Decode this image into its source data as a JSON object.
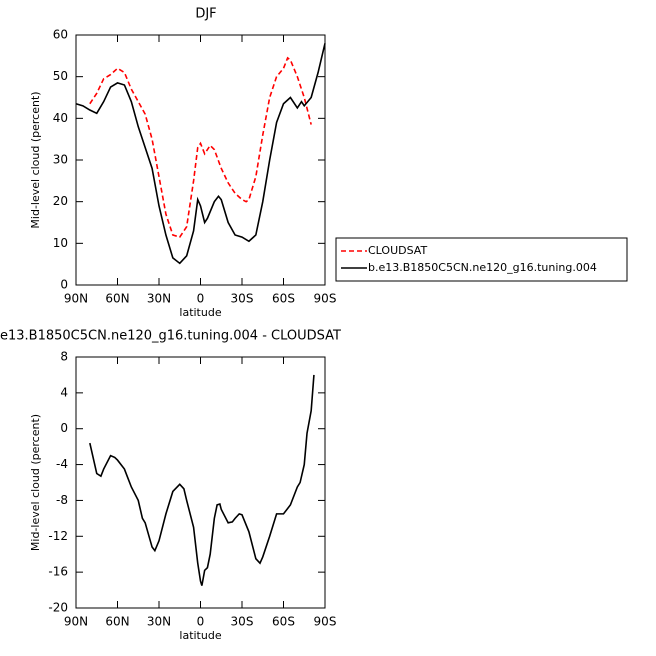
{
  "chart_data": [
    {
      "type": "line",
      "title": "DJF",
      "xlabel": "latitude",
      "ylabel": "Mid-level cloud (percent)",
      "xlim": [
        90,
        -90
      ],
      "ylim": [
        0,
        60
      ],
      "xticks": [
        {
          "value": 90,
          "label": "90N"
        },
        {
          "value": 60,
          "label": "60N"
        },
        {
          "value": 30,
          "label": "30N"
        },
        0,
        {
          "value": -30,
          "label": "30S"
        },
        {
          "value": -60,
          "label": "60S"
        },
        {
          "value": -90,
          "label": "90S"
        }
      ],
      "yticks": [
        0,
        10,
        20,
        30,
        40,
        50,
        60
      ],
      "legend": "right",
      "series": [
        {
          "name": "CLOUDSAT",
          "color": "#ff0000",
          "dash": true,
          "x": [
            80,
            75,
            70,
            65,
            60,
            55,
            50,
            45,
            40,
            35,
            30,
            25,
            20,
            15,
            10,
            5,
            2,
            0,
            -3,
            -7,
            -10,
            -15,
            -20,
            -25,
            -30,
            -33,
            -35,
            -40,
            -45,
            -50,
            -55,
            -60,
            -63,
            -65,
            -70,
            -75,
            -80
          ],
          "values": [
            43.5,
            46,
            49.5,
            50.5,
            52,
            51,
            47,
            44,
            41,
            35,
            26,
            17,
            12,
            11.5,
            14,
            25,
            33,
            34,
            31.5,
            33.5,
            32.5,
            28,
            24.5,
            22,
            20.5,
            20,
            20.5,
            26,
            36,
            45,
            50,
            52,
            54.5,
            54,
            50,
            45,
            38.5
          ]
        },
        {
          "name": "b.e13.B1850C5CN.ne120_g16.tuning.004",
          "color": "#000000",
          "dash": false,
          "x": [
            90,
            85,
            80,
            75,
            70,
            65,
            60,
            55,
            50,
            45,
            40,
            35,
            30,
            25,
            20,
            15,
            10,
            5,
            2,
            0,
            -3,
            -5,
            -10,
            -13,
            -15,
            -20,
            -25,
            -30,
            -35,
            -40,
            -45,
            -50,
            -55,
            -60,
            -65,
            -70,
            -73,
            -75,
            -80,
            -85,
            -90
          ],
          "values": [
            43.5,
            43,
            42,
            41.2,
            44,
            47.5,
            48.5,
            48,
            44,
            38,
            33,
            28,
            19,
            12,
            6.5,
            5.2,
            7,
            13,
            20.5,
            19,
            15,
            16,
            20,
            21.3,
            20.5,
            15,
            12,
            11.5,
            10.5,
            12,
            20,
            30,
            39,
            43.5,
            45,
            42.5,
            44,
            43,
            45,
            51,
            58
          ]
        }
      ]
    },
    {
      "type": "line",
      "title": "e13.B1850C5CN.ne120_g16.tuning.004 - CLOUDSAT",
      "xlabel": "latitude",
      "ylabel": "Mid-level cloud (percent)",
      "xlim": [
        90,
        -90
      ],
      "ylim": [
        -20,
        8
      ],
      "xticks": [
        {
          "value": 90,
          "label": "90N"
        },
        {
          "value": 60,
          "label": "60N"
        },
        {
          "value": 30,
          "label": "30N"
        },
        0,
        {
          "value": -30,
          "label": "30S"
        },
        {
          "value": -60,
          "label": "60S"
        },
        {
          "value": -90,
          "label": "90S"
        }
      ],
      "yticks": [
        -20,
        -16,
        -12,
        -8,
        -4,
        0,
        4,
        8
      ],
      "series": [
        {
          "color": "#000000",
          "dash": false,
          "x": [
            80,
            75,
            72,
            70,
            65,
            62,
            60,
            55,
            50,
            45,
            42,
            40,
            35,
            33,
            30,
            25,
            20,
            15,
            12,
            10,
            5,
            2,
            0,
            -1,
            -3,
            -5,
            -7,
            -10,
            -12,
            -14,
            -15,
            -20,
            -23,
            -25,
            -28,
            -30,
            -35,
            -40,
            -43,
            -45,
            -50,
            -55,
            -60,
            -65,
            -70,
            -72,
            -75,
            -77,
            -80,
            -82
          ],
          "values": [
            -1.6,
            -5,
            -5.3,
            -4.5,
            -3,
            -3.2,
            -3.5,
            -4.5,
            -6.5,
            -8,
            -10,
            -10.5,
            -13.2,
            -13.6,
            -12.5,
            -9.5,
            -7,
            -6.2,
            -6.7,
            -8,
            -11,
            -15,
            -17,
            -17.5,
            -15.8,
            -15.5,
            -14,
            -10,
            -8.5,
            -8.4,
            -9,
            -10.5,
            -10.4,
            -10,
            -9.5,
            -9.6,
            -11.5,
            -14.5,
            -15,
            -14.3,
            -12,
            -9.5,
            -9.5,
            -8.5,
            -6.5,
            -6,
            -4,
            -0.5,
            2,
            6
          ]
        }
      ]
    }
  ]
}
